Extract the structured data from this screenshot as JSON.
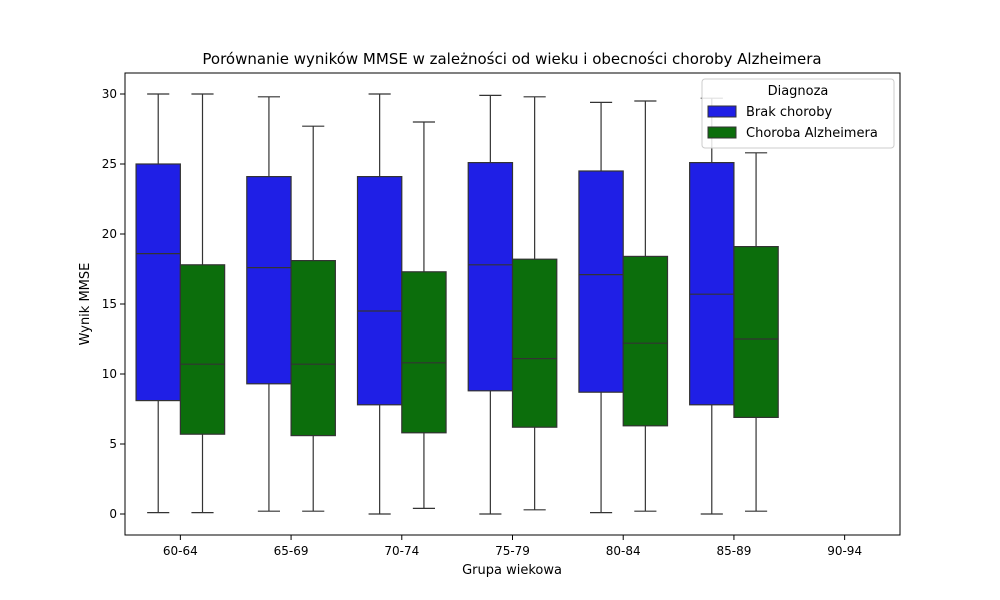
{
  "chart_data": {
    "type": "boxplot",
    "title": "Porównanie wyników MMSE w zależności od wieku i obecności choroby Alzheimera",
    "xlabel": "Grupa wiekowa",
    "ylabel": "Wynik MMSE",
    "categories": [
      "60-64",
      "65-69",
      "70-74",
      "75-79",
      "80-84",
      "85-89",
      "90-94"
    ],
    "ylim": [
      -1.5,
      31.5
    ],
    "yticks": [
      0,
      5,
      10,
      15,
      20,
      25,
      30
    ],
    "grid": false,
    "legend": {
      "title": "Diagnoza",
      "placement": "top-right"
    },
    "series": [
      {
        "name": "Brak choroby",
        "color": "#1f1fe6",
        "boxes": [
          {
            "min": 0.1,
            "q1": 8.1,
            "median": 18.6,
            "q3": 25.0,
            "max": 30.0
          },
          {
            "min": 0.2,
            "q1": 9.3,
            "median": 17.6,
            "q3": 24.1,
            "max": 29.8
          },
          {
            "min": 0.0,
            "q1": 7.8,
            "median": 14.5,
            "q3": 24.1,
            "max": 30.0
          },
          {
            "min": 0.0,
            "q1": 8.8,
            "median": 17.8,
            "q3": 25.1,
            "max": 29.9
          },
          {
            "min": 0.1,
            "q1": 8.7,
            "median": 17.1,
            "q3": 24.5,
            "max": 29.4
          },
          {
            "min": 0.0,
            "q1": 7.8,
            "median": 15.7,
            "q3": 25.1,
            "max": 29.7
          },
          null
        ]
      },
      {
        "name": "Choroba Alzheimera",
        "color": "#0c6e0c",
        "boxes": [
          {
            "min": 0.1,
            "q1": 5.7,
            "median": 10.7,
            "q3": 17.8,
            "max": 30.0
          },
          {
            "min": 0.2,
            "q1": 5.6,
            "median": 10.7,
            "q3": 18.1,
            "max": 27.7
          },
          {
            "min": 0.4,
            "q1": 5.8,
            "median": 10.8,
            "q3": 17.3,
            "max": 28.0
          },
          {
            "min": 0.3,
            "q1": 6.2,
            "median": 11.1,
            "q3": 18.2,
            "max": 29.8
          },
          {
            "min": 0.2,
            "q1": 6.3,
            "median": 12.2,
            "q3": 18.4,
            "max": 29.5
          },
          {
            "min": 0.2,
            "q1": 6.9,
            "median": 12.5,
            "q3": 19.1,
            "max": 25.8
          },
          null
        ]
      }
    ]
  }
}
